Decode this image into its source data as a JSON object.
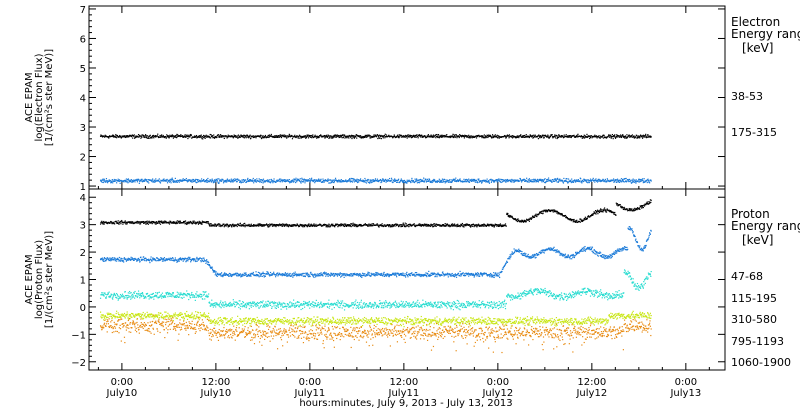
{
  "chart_data": {
    "type": "scatter",
    "xlabel": "hours:minutes, July  9, 2013 - July 13, 2013",
    "x_ticks": [
      {
        "time": "0:00",
        "day": "July10",
        "hour": 24
      },
      {
        "time": "12:00",
        "day": "July10",
        "hour": 36
      },
      {
        "time": "0:00",
        "day": "July11",
        "hour": 48
      },
      {
        "time": "12:00",
        "day": "July11",
        "hour": 60
      },
      {
        "time": "0:00",
        "day": "July12",
        "hour": 72
      },
      {
        "time": "12:00",
        "day": "July12",
        "hour": 84
      },
      {
        "time": "0:00",
        "day": "July13",
        "hour": 96
      }
    ],
    "xlim_hours": [
      19.8,
      101
    ],
    "panels": [
      {
        "id": "electron",
        "ylabel_lines": [
          "ACE EPAM",
          "log(Electron Flux)",
          "[1/(cm²s ster MeV)]"
        ],
        "ylim": [
          0.9,
          7.1
        ],
        "yticks": [
          1,
          2,
          3,
          4,
          5,
          6,
          7
        ],
        "legend_title": [
          "Electron",
          "Energy range",
          "[keV]"
        ],
        "series": [
          {
            "name": "38-53",
            "color": "#000000",
            "level": 2.7,
            "noise": 0.05
          },
          {
            "name": "175-315",
            "color": "#1a7ad8",
            "level": 1.2,
            "noise": 0.06
          }
        ]
      },
      {
        "id": "proton",
        "ylabel_lines": [
          "ACE EPAM",
          "log(Proton Flux)",
          "[1/(cm²s ster MeV)]"
        ],
        "ylim": [
          -2.3,
          4.3
        ],
        "yticks": [
          -2,
          -1,
          0,
          1,
          2,
          3,
          4
        ],
        "legend_title": [
          "Proton",
          "Energy range",
          "[keV]"
        ],
        "series": [
          {
            "name": "47-68",
            "color": "#000000",
            "level": 3.1,
            "noise": 0.05
          },
          {
            "name": "115-195",
            "color": "#1a7ad8",
            "level": 1.2,
            "noise": 0.07
          },
          {
            "name": "310-580",
            "color": "#28dcd0",
            "level": 0.1,
            "noise": 0.12
          },
          {
            "name": "795-1193",
            "color": "#c8e614",
            "level": -0.5,
            "noise": 0.12
          },
          {
            "name": "1060-1900",
            "color": "#e88a10",
            "level": -0.9,
            "noise": 0.22
          }
        ]
      }
    ]
  }
}
